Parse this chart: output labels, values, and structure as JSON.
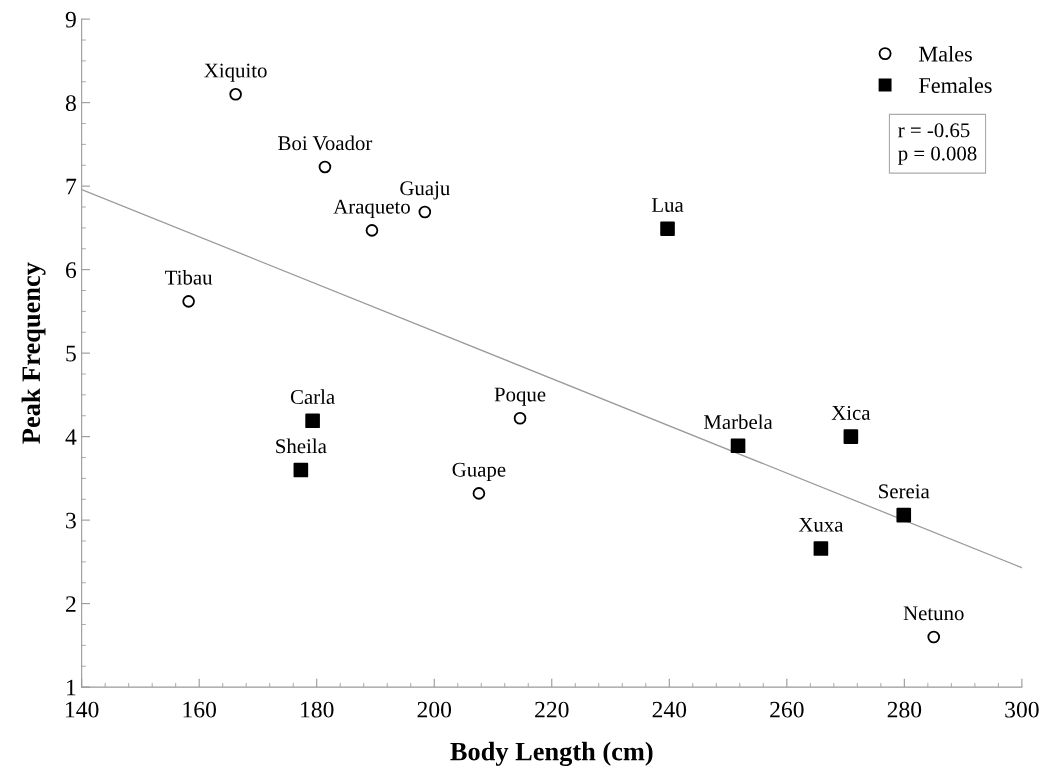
{
  "chart_data": {
    "type": "scatter",
    "xlabel": "Body Length (cm)",
    "ylabel": "Peak Frequency",
    "xlim": [
      140,
      300
    ],
    "xticks": [
      140,
      160,
      180,
      200,
      220,
      240,
      260,
      280,
      300
    ],
    "ylim": [
      1,
      9
    ],
    "yticks": [
      1,
      2,
      3,
      4,
      5,
      6,
      7,
      8,
      9
    ],
    "grid": false,
    "legend": "top right",
    "series": [
      {
        "name": "Males",
        "color": "#000000",
        "marker": "circle",
        "x": [
          166.2,
          181.4,
          198.4,
          189.4,
          158.2,
          214.6,
          207.6,
          285.0
        ],
        "values": [
          8.1,
          7.23,
          6.69,
          6.47,
          5.62,
          4.22,
          3.32,
          1.6
        ]
      },
      {
        "name": "Females",
        "color": "#000000",
        "marker": "square",
        "x": [
          239.7,
          179.3,
          177.3,
          251.7,
          270.9,
          279.9,
          265.8
        ],
        "values": [
          6.49,
          4.19,
          3.6,
          3.89,
          4.0,
          3.06,
          2.66
        ]
      },
      {
        "type": "line",
        "color": "#999999",
        "marker": "none",
        "x": [
          140,
          300
        ],
        "values": [
          6.96,
          2.43
        ]
      }
    ],
    "annotations": [
      {
        "text": "Xiquito",
        "x": 166.2,
        "y": 8.1
      },
      {
        "text": "Boi Voador",
        "x": 181.4,
        "y": 7.23
      },
      {
        "text": "Guaju",
        "x": 198.4,
        "y": 6.69
      },
      {
        "text": "Araqueto",
        "x": 189.4,
        "y": 6.47
      },
      {
        "text": "Tibau",
        "x": 158.2,
        "y": 5.62
      },
      {
        "text": "Poque",
        "x": 214.6,
        "y": 4.22
      },
      {
        "text": "Guape",
        "x": 207.6,
        "y": 3.32
      },
      {
        "text": "Netuno",
        "x": 285.0,
        "y": 1.6
      },
      {
        "text": "Lua",
        "x": 239.7,
        "y": 6.49
      },
      {
        "text": "Carla",
        "x": 179.3,
        "y": 4.19
      },
      {
        "text": "Sheila",
        "x": 177.3,
        "y": 3.6
      },
      {
        "text": "Marbela",
        "x": 251.7,
        "y": 3.89
      },
      {
        "text": "Xica",
        "x": 270.9,
        "y": 4.0
      },
      {
        "text": "Sereia",
        "x": 279.9,
        "y": 3.06
      },
      {
        "text": "Xuxa",
        "x": 265.8,
        "y": 2.66
      },
      "r = -0.65\np = 0.008"
    ]
  }
}
